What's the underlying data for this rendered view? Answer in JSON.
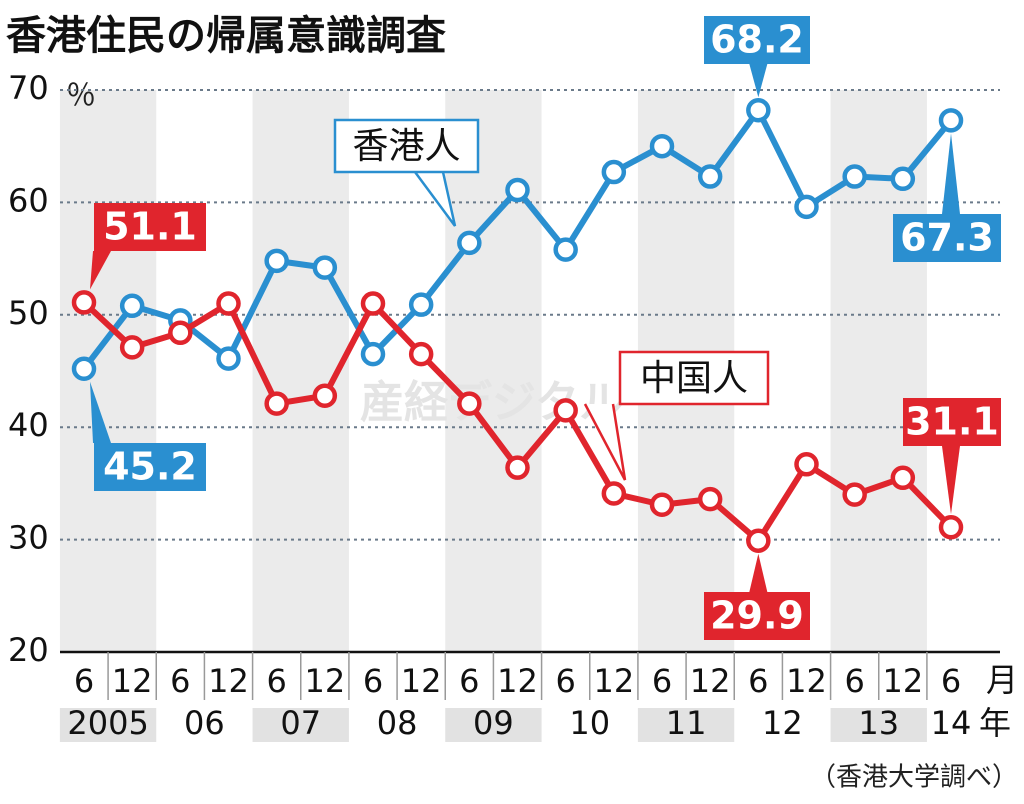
{
  "chart_data": {
    "type": "line",
    "title": "香港住民の帰属意識調査",
    "y_unit": "％",
    "x_unit": "月",
    "year_unit": "年",
    "source": "（香港大学調べ）",
    "watermark": "産経デジタル",
    "categories": [
      "6",
      "12",
      "6",
      "12",
      "6",
      "12",
      "6",
      "12",
      "6",
      "12",
      "6",
      "12",
      "6",
      "12",
      "6",
      "12",
      "6",
      "12",
      "6"
    ],
    "years": [
      "2005",
      "06",
      "07",
      "08",
      "09",
      "10",
      "11",
      "12",
      "13",
      "14"
    ],
    "ylim": [
      20,
      70
    ],
    "yticks": [
      20,
      30,
      40,
      50,
      60,
      70
    ],
    "grid": true,
    "series": [
      {
        "name": "香港人",
        "color": "#2a8fd0",
        "values": [
          45.2,
          50.8,
          49.5,
          46.1,
          54.8,
          54.2,
          46.5,
          50.9,
          56.4,
          61.1,
          55.8,
          62.7,
          65.0,
          62.3,
          68.2,
          59.6,
          62.3,
          62.1,
          67.3
        ]
      },
      {
        "name": "中国人",
        "color": "#e0252d",
        "values": [
          51.1,
          47.1,
          48.4,
          51.0,
          42.1,
          42.8,
          51.0,
          46.5,
          42.1,
          36.4,
          41.5,
          34.1,
          33.1,
          33.6,
          29.9,
          36.7,
          34.0,
          35.5,
          31.1
        ]
      }
    ]
  }
}
